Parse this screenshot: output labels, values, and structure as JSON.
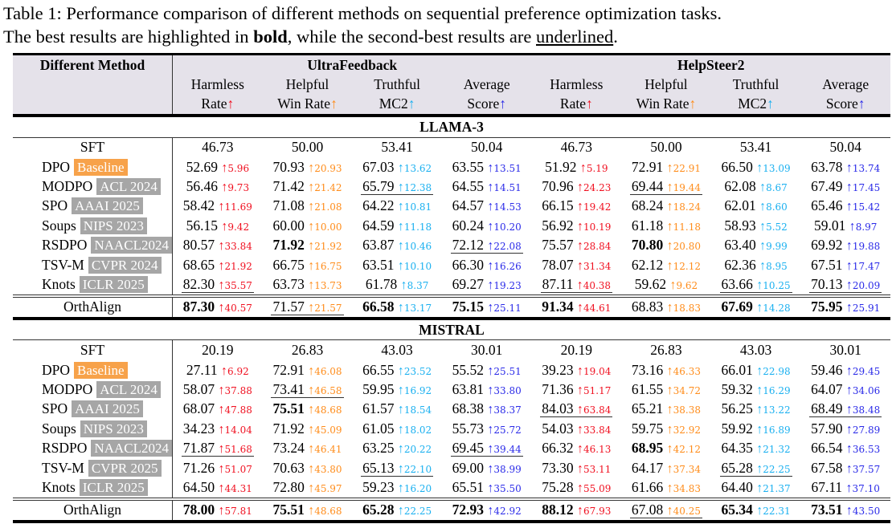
{
  "caption": {
    "line1": "Table 1: Performance comparison of different methods on sequential preference optimization tasks.",
    "line2_pre": "The best results are highlighted in ",
    "line2_bold": "bold",
    "line2_mid": ", while the second-best results are ",
    "line2_under": "underlined",
    "line2_end": "."
  },
  "header": {
    "method": "Different Method",
    "groups": [
      "UltraFeedback",
      "HelpSteer2"
    ],
    "metrics": [
      {
        "l1": "Harmless",
        "l2": "Rate",
        "c": "#f01020"
      },
      {
        "l1": "Helpful",
        "l2": "Win Rate",
        "c": "#ff8c1a"
      },
      {
        "l1": "Truthful",
        "l2": "MC2",
        "c": "#1ab0f0"
      },
      {
        "l1": "Average",
        "l2": "Score",
        "c": "#2a2ae8"
      }
    ],
    "arrow": "↑"
  },
  "colors": {
    "baseline": "#f7a24a",
    "venue": "#a6a6a6"
  },
  "sections": [
    {
      "name": "LLAMA-3",
      "sft": [
        "46.73",
        "50.00",
        "53.41",
        "50.04",
        "46.73",
        "50.00",
        "53.41",
        "50.04"
      ],
      "rows": [
        {
          "m": "DPO",
          "t": "Baseline",
          "base": true,
          "c": [
            [
              "52.69",
              "5.96"
            ],
            [
              "70.93",
              "20.93"
            ],
            [
              "67.03",
              "13.62"
            ],
            [
              "63.55",
              "13.51"
            ],
            [
              "51.92",
              "5.19"
            ],
            [
              "72.91",
              "22.91"
            ],
            [
              "66.50",
              "13.09"
            ],
            [
              "63.78",
              "13.74"
            ]
          ]
        },
        {
          "m": "MODPO",
          "t": "ACL 2024",
          "c": [
            [
              "56.46",
              "9.73"
            ],
            [
              "71.42",
              "21.42"
            ],
            [
              "65.79",
              "12.38",
              "u"
            ],
            [
              "64.55",
              "14.51"
            ],
            [
              "70.96",
              "24.23"
            ],
            [
              "69.44",
              "19.44",
              "u"
            ],
            [
              "62.08",
              "8.67"
            ],
            [
              "67.49",
              "17.45"
            ]
          ]
        },
        {
          "m": "SPO",
          "t": "AAAI 2025",
          "c": [
            [
              "58.42",
              "11.69"
            ],
            [
              "71.08",
              "21.08"
            ],
            [
              "64.22",
              "10.81"
            ],
            [
              "64.57",
              "14.53"
            ],
            [
              "66.15",
              "19.42"
            ],
            [
              "68.24",
              "18.24"
            ],
            [
              "62.01",
              "8.60"
            ],
            [
              "65.46",
              "15.42"
            ]
          ]
        },
        {
          "m": "Soups",
          "t": "NIPS 2023",
          "c": [
            [
              "56.15",
              "9.42"
            ],
            [
              "60.00",
              "10.00"
            ],
            [
              "64.59",
              "11.18"
            ],
            [
              "60.24",
              "10.20"
            ],
            [
              "56.92",
              "10.19"
            ],
            [
              "61.18",
              "11.18"
            ],
            [
              "58.93",
              "5.52"
            ],
            [
              "59.01",
              "8.97"
            ]
          ]
        },
        {
          "m": "RSDPO",
          "t": "NAACL2024",
          "c": [
            [
              "80.57",
              "33.84"
            ],
            [
              "71.92",
              "21.92",
              "b"
            ],
            [
              "63.87",
              "10.46"
            ],
            [
              "72.12",
              "22.08",
              "u"
            ],
            [
              "75.57",
              "28.84"
            ],
            [
              "70.80",
              "20.80",
              "b"
            ],
            [
              "63.40",
              "9.99"
            ],
            [
              "69.92",
              "19.88"
            ]
          ]
        },
        {
          "m": "TSV-M",
          "t": "CVPR 2024",
          "c": [
            [
              "68.65",
              "21.92"
            ],
            [
              "66.75",
              "16.75"
            ],
            [
              "63.51",
              "10.10"
            ],
            [
              "66.30",
              "16.26"
            ],
            [
              "78.07",
              "31.34"
            ],
            [
              "62.12",
              "12.12"
            ],
            [
              "62.36",
              "8.95"
            ],
            [
              "67.51",
              "17.47"
            ]
          ]
        },
        {
          "m": "Knots",
          "t": "ICLR 2025",
          "c": [
            [
              "82.30",
              "35.57",
              "u"
            ],
            [
              "63.73",
              "13.73"
            ],
            [
              "61.78",
              "8.37"
            ],
            [
              "69.27",
              "19.23"
            ],
            [
              "87.11",
              "40.38",
              "u"
            ],
            [
              "59.62",
              "9.62"
            ],
            [
              "63.66",
              "10.25",
              "u"
            ],
            [
              "70.13",
              "20.09",
              "u"
            ]
          ]
        }
      ],
      "ours": {
        "m": "OrthAlign",
        "c": [
          [
            "87.30",
            "40.57",
            "b"
          ],
          [
            "71.57",
            "21.57",
            "u"
          ],
          [
            "66.58",
            "13.17",
            "b"
          ],
          [
            "75.15",
            "25.11",
            "b"
          ],
          [
            "91.34",
            "44.61",
            "b"
          ],
          [
            "68.83",
            "18.83"
          ],
          [
            "67.69",
            "14.28",
            "b"
          ],
          [
            "75.95",
            "25.91",
            "b"
          ]
        ]
      }
    },
    {
      "name": "MISTRAL",
      "sft": [
        "20.19",
        "26.83",
        "43.03",
        "30.01",
        "20.19",
        "26.83",
        "43.03",
        "30.01"
      ],
      "rows": [
        {
          "m": "DPO",
          "t": "Baseline",
          "base": true,
          "c": [
            [
              "27.11",
              "6.92"
            ],
            [
              "72.91",
              "46.08"
            ],
            [
              "66.55",
              "23.52"
            ],
            [
              "55.52",
              "25.51"
            ],
            [
              "39.23",
              "19.04"
            ],
            [
              "73.16",
              "46.33"
            ],
            [
              "66.01",
              "22.98"
            ],
            [
              "59.46",
              "29.45"
            ]
          ]
        },
        {
          "m": "MODPO",
          "t": "ACL 2024",
          "c": [
            [
              "58.07",
              "37.88"
            ],
            [
              "73.41",
              "46.58",
              "u"
            ],
            [
              "59.95",
              "16.92"
            ],
            [
              "63.81",
              "33.80"
            ],
            [
              "71.36",
              "51.17"
            ],
            [
              "61.55",
              "34.72"
            ],
            [
              "59.32",
              "16.29"
            ],
            [
              "64.07",
              "34.06"
            ]
          ]
        },
        {
          "m": "SPO",
          "t": "AAAI 2025",
          "c": [
            [
              "68.07",
              "47.88"
            ],
            [
              "75.51",
              "48.68",
              "b"
            ],
            [
              "61.57",
              "18.54"
            ],
            [
              "68.38",
              "38.37"
            ],
            [
              "84.03",
              "63.84",
              "u"
            ],
            [
              "65.21",
              "38.38"
            ],
            [
              "56.25",
              "13.22"
            ],
            [
              "68.49",
              "38.48",
              "u"
            ]
          ]
        },
        {
          "m": "Soups",
          "t": "NIPS 2023",
          "c": [
            [
              "34.23",
              "14.04"
            ],
            [
              "71.92",
              "45.09"
            ],
            [
              "61.05",
              "18.02"
            ],
            [
              "55.73",
              "25.72"
            ],
            [
              "54.03",
              "33.84"
            ],
            [
              "59.75",
              "32.92"
            ],
            [
              "59.92",
              "16.89"
            ],
            [
              "57.90",
              "27.89"
            ]
          ]
        },
        {
          "m": "RSDPO",
          "t": "NAACL2024",
          "c": [
            [
              "71.87",
              "51.68",
              "u"
            ],
            [
              "73.24",
              "46.41"
            ],
            [
              "63.25",
              "20.22"
            ],
            [
              "69.45",
              "39.44",
              "u"
            ],
            [
              "66.32",
              "46.13"
            ],
            [
              "68.95",
              "42.12",
              "b"
            ],
            [
              "64.35",
              "21.32"
            ],
            [
              "66.54",
              "36.53"
            ]
          ]
        },
        {
          "m": "TSV-M",
          "t": "CVPR 2025",
          "c": [
            [
              "71.26",
              "51.07"
            ],
            [
              "70.63",
              "43.80"
            ],
            [
              "65.13",
              "22.10",
              "u"
            ],
            [
              "69.00",
              "38.99"
            ],
            [
              "73.30",
              "53.11"
            ],
            [
              "64.17",
              "37.34"
            ],
            [
              "65.28",
              "22.25",
              "u"
            ],
            [
              "67.58",
              "37.57"
            ]
          ]
        },
        {
          "m": "Knots",
          "t": "ICLR 2025",
          "c": [
            [
              "64.50",
              "44.31"
            ],
            [
              "72.80",
              "45.97"
            ],
            [
              "59.23",
              "16.20"
            ],
            [
              "65.51",
              "35.50"
            ],
            [
              "75.28",
              "55.09"
            ],
            [
              "61.66",
              "34.83"
            ],
            [
              "64.40",
              "21.37"
            ],
            [
              "67.11",
              "37.10"
            ]
          ]
        }
      ],
      "ours": {
        "m": "OrthAlign",
        "c": [
          [
            "78.00",
            "57.81",
            "b"
          ],
          [
            "75.51",
            "48.68",
            "b"
          ],
          [
            "65.28",
            "22.25",
            "b"
          ],
          [
            "72.93",
            "42.92",
            "b"
          ],
          [
            "88.12",
            "67.93",
            "b"
          ],
          [
            "67.08",
            "40.25",
            "u"
          ],
          [
            "65.34",
            "22.31",
            "b"
          ],
          [
            "73.51",
            "43.50",
            "b"
          ]
        ]
      }
    }
  ]
}
